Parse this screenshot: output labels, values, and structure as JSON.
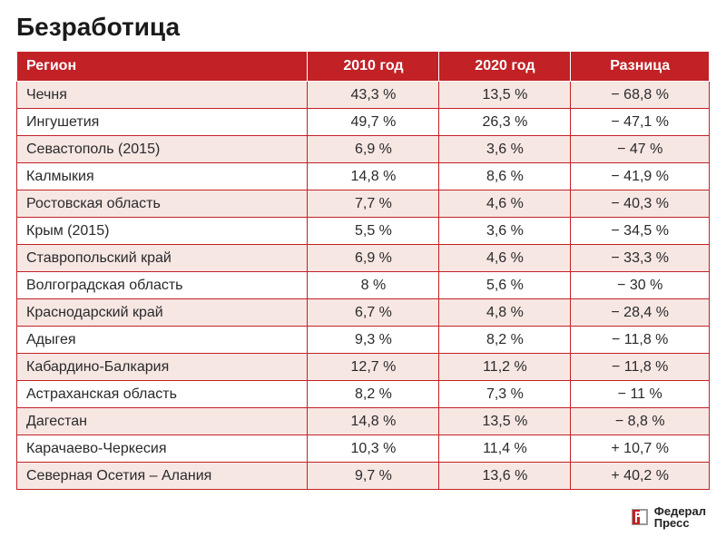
{
  "title": "Безработица",
  "table": {
    "type": "table",
    "header_bg": "#c22126",
    "header_fg": "#ffffff",
    "row_border": "#c22126",
    "row_bg_even": "#ffffff",
    "row_bg_odd": "#f6e7e3",
    "text_color": "#2a2a2a",
    "font_size": 16,
    "columns": [
      "Регион",
      "2010 год",
      "2020 год",
      "Разница"
    ],
    "column_widths": [
      "42%",
      "19%",
      "19%",
      "20%"
    ],
    "column_align": [
      "left",
      "center",
      "center",
      "center"
    ],
    "rows": [
      [
        "Чечня",
        "43,3 %",
        "13,5 %",
        "− 68,8 %"
      ],
      [
        "Ингушетия",
        "49,7 %",
        "26,3 %",
        "− 47,1 %"
      ],
      [
        "Севастополь (2015)",
        "6,9 %",
        "3,6 %",
        "− 47 %"
      ],
      [
        "Калмыкия",
        "14,8 %",
        "8,6 %",
        "− 41,9 %"
      ],
      [
        "Ростовская область",
        "7,7 %",
        "4,6 %",
        "− 40,3 %"
      ],
      [
        "Крым (2015)",
        "5,5 %",
        "3,6 %",
        "− 34,5 %"
      ],
      [
        "Ставропольский край",
        "6,9 %",
        "4,6 %",
        "− 33,3 %"
      ],
      [
        "Волгоградская область",
        "8 %",
        "5,6 %",
        "− 30 %"
      ],
      [
        "Краснодарский край",
        "6,7 %",
        "4,8 %",
        "− 28,4 %"
      ],
      [
        "Адыгея",
        "9,3 %",
        "8,2 %",
        "− 11,8 %"
      ],
      [
        "Кабардино-Балкария",
        "12,7 %",
        "11,2 %",
        "− 11,8 %"
      ],
      [
        "Астраханская область",
        "8,2 %",
        "7,3 %",
        "− 11 %"
      ],
      [
        "Дагестан",
        "14,8 %",
        "13,5 %",
        "− 8,8 %"
      ],
      [
        "Карачаево-Черкесия",
        "10,3 %",
        "11,4 %",
        "+ 10,7 %"
      ],
      [
        "Северная Осетия – Алания",
        "9,7 %",
        "13,6 %",
        "+ 40,2 %"
      ]
    ]
  },
  "footer": {
    "logo_text_line1": "Федерал",
    "logo_text_line2": "Пресс",
    "logo_accent": "#c22126",
    "logo_gray": "#9a9a9a"
  }
}
